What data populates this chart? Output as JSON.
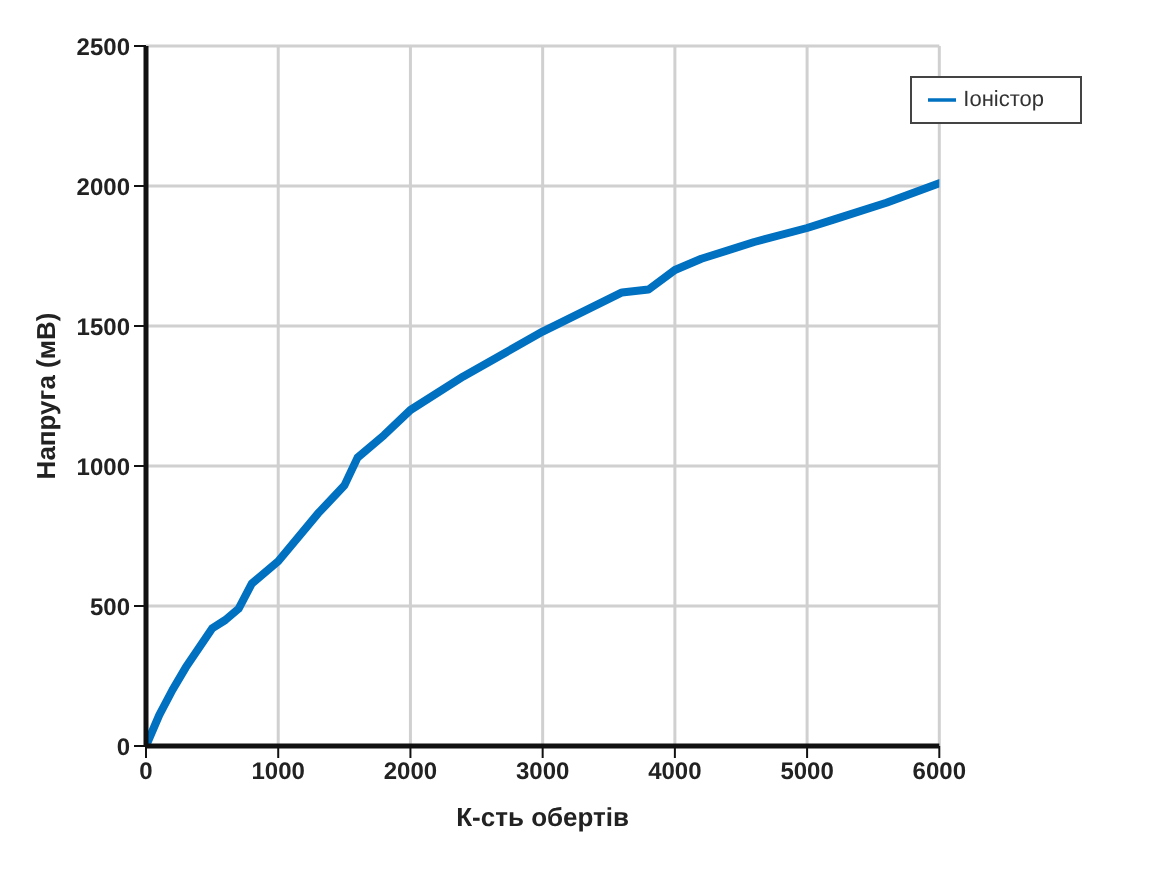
{
  "chart_data": {
    "type": "line",
    "xlabel": "К-сть обертів",
    "ylabel": "Напруга (мВ)",
    "x": [
      0,
      100,
      200,
      300,
      500,
      600,
      700,
      800,
      1000,
      1300,
      1500,
      1600,
      1800,
      2000,
      2400,
      3000,
      3600,
      3800,
      4000,
      4200,
      4600,
      5000,
      5200,
      5600,
      6000
    ],
    "series": [
      {
        "name": "Іоністор",
        "color": "#0070c0",
        "values": [
          0,
          110,
          200,
          280,
          420,
          450,
          490,
          580,
          660,
          830,
          930,
          1030,
          1110,
          1200,
          1320,
          1480,
          1620,
          1630,
          1700,
          1740,
          1800,
          1850,
          1880,
          1940,
          2010
        ]
      }
    ],
    "xlim": [
      0,
      6000
    ],
    "xticks": [
      0,
      1000,
      2000,
      3000,
      4000,
      5000,
      6000
    ],
    "ylim": [
      0,
      2500
    ],
    "yticks": [
      0,
      500,
      1000,
      1500,
      2000,
      2500
    ],
    "grid": true,
    "legend": "top right",
    "marker": "none",
    "line_style": "solid"
  }
}
